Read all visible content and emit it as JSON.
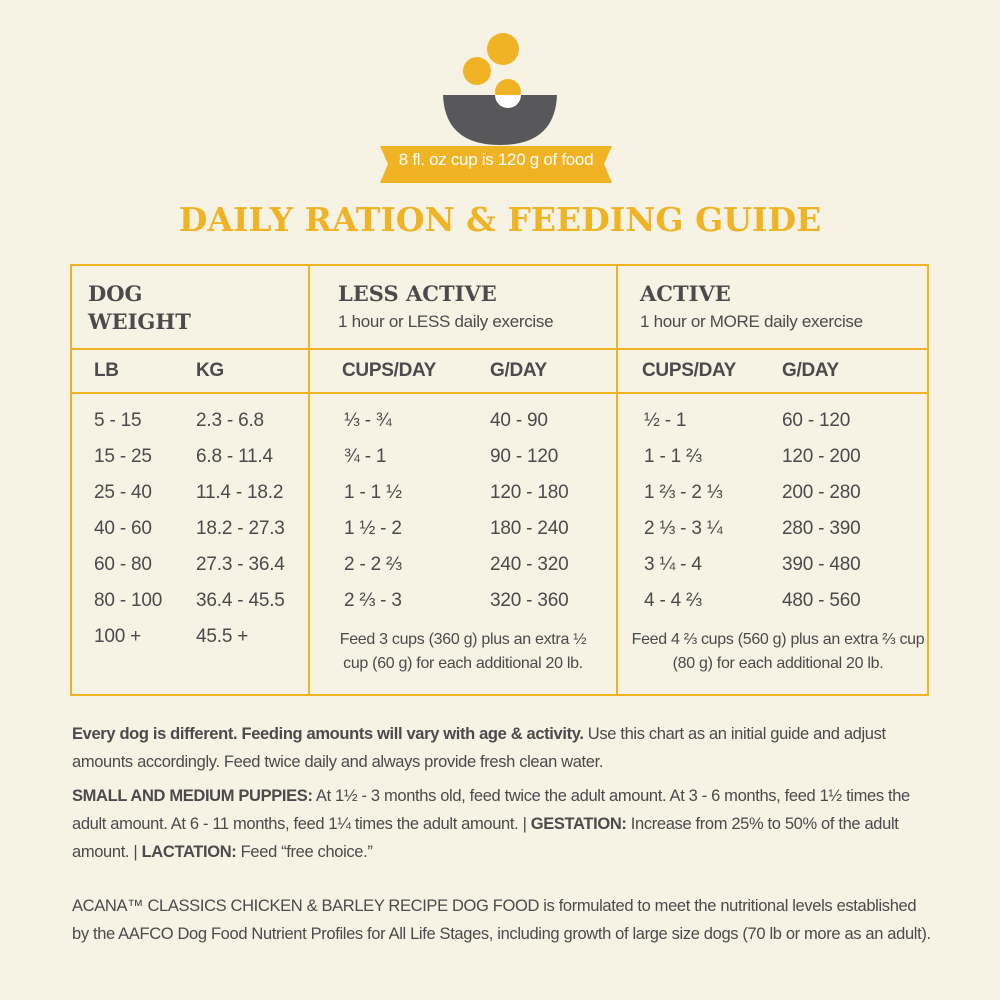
{
  "banner": "8 fl. oz cup is 120 g of food",
  "title": "DAILY RATION & FEEDING GUIDE",
  "table": {
    "groups": [
      {
        "title": "DOG WEIGHT"
      },
      {
        "title": "LESS ACTIVE",
        "subtitle": "1 hour or LESS daily exercise"
      },
      {
        "title": "ACTIVE",
        "subtitle": "1 hour or MORE daily exercise"
      }
    ],
    "columns": [
      "LB",
      "KG",
      "CUPS/DAY",
      "G/DAY",
      "CUPS/DAY",
      "G/DAY"
    ],
    "rows": [
      [
        "5 - 15",
        "2.3 - 6.8",
        "⅓ - ¾",
        "40 - 90",
        "½ - 1",
        "60 - 120"
      ],
      [
        "15 - 25",
        "6.8 - 11.4",
        "¾ - 1",
        "90 - 120",
        "1 - 1 ⅔",
        "120 - 200"
      ],
      [
        "25 - 40",
        "11.4 - 18.2",
        "1 - 1 ½",
        "120 - 180",
        "1 ⅔ - 2 ⅓",
        "200 - 280"
      ],
      [
        "40 - 60",
        "18.2 - 27.3",
        "1 ½ - 2",
        "180 - 240",
        "2 ⅓ - 3 ¼",
        "280 - 390"
      ],
      [
        "60 - 80",
        "27.3 - 36.4",
        "2 - 2 ⅔",
        "240 - 320",
        "3 ¼ - 4",
        "390 - 480"
      ],
      [
        "80 - 100",
        "36.4 - 45.5",
        "2 ⅔ - 3",
        "320 - 360",
        "4 - 4 ⅔",
        "480 - 560"
      ]
    ],
    "last_row": {
      "lb": "100 +",
      "kg": "45.5 +",
      "less_active": "Feed 3 cups (360 g) plus an extra ½ cup (60 g) for each additional 20 lb.",
      "active": "Feed 4 ⅔ cups (560 g) plus an extra ⅔ cup (80 g) for each additional 20 lb."
    }
  },
  "notes": [
    [
      {
        "text": "Every dog is different. Feeding amounts will vary with age & activity.",
        "bold": true
      },
      {
        "text": " Use this chart as an initial guide and adjust amounts accordingly. Feed twice daily and always provide fresh clean water.",
        "bold": false
      }
    ],
    [
      {
        "text": "SMALL AND MEDIUM PUPPIES:",
        "bold": true
      },
      {
        "text": " At 1½ - 3 months old, feed twice the adult amount. At 3 - 6 months, feed 1½ times the adult amount. At 6 - 11 months, feed 1¼ times the adult amount. | ",
        "bold": false
      },
      {
        "text": "GESTATION:",
        "bold": true
      },
      {
        "text": " Increase from 25% to 50% of the adult amount. | ",
        "bold": false
      },
      {
        "text": "LACTATION:",
        "bold": true
      },
      {
        "text": " Feed “free choice.”",
        "bold": false
      }
    ],
    [
      {
        "text": "ACANA™ CLASSICS CHICKEN & BARLEY RECIPE DOG FOOD is formulated to meet the nutritional levels established by the AAFCO Dog Food Nutrient Profiles for All Life Stages, including growth of large size dogs (70 lb or more as an adult).",
        "bold": false
      }
    ]
  ]
}
